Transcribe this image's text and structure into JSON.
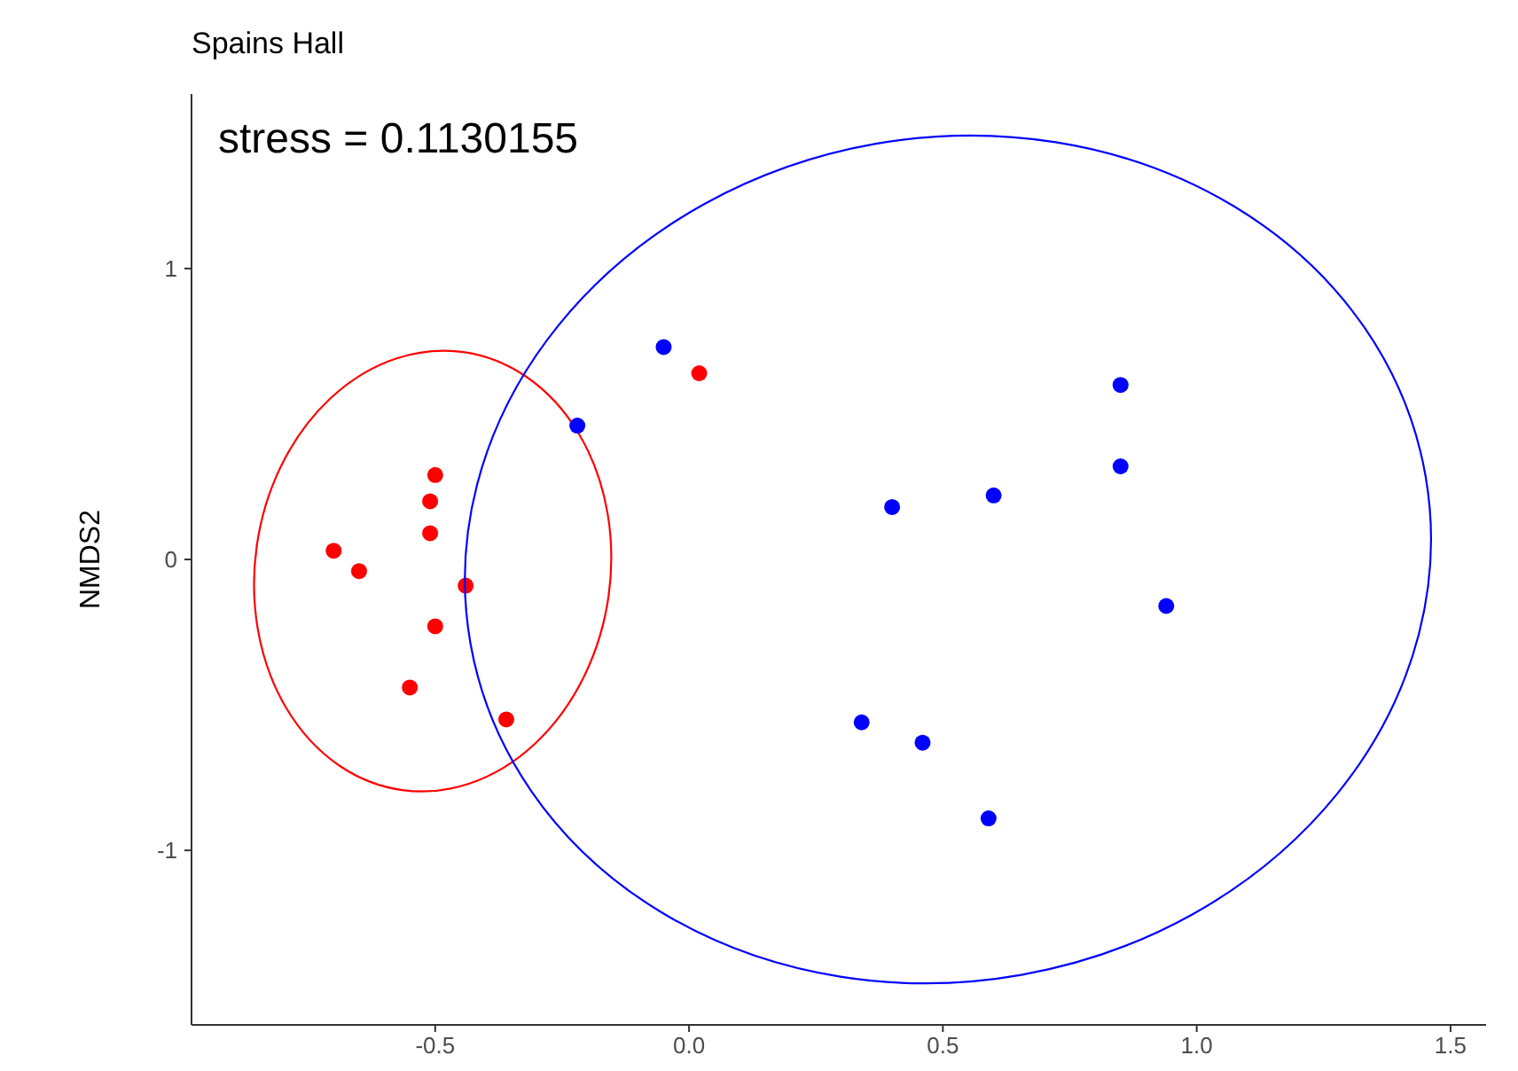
{
  "chart_data": {
    "type": "scatter",
    "title": "Spains Hall",
    "ylabel": "NMDS2",
    "annotations": [
      "stress = 0.1130155"
    ],
    "xlim": [
      -0.98,
      1.57
    ],
    "ylim": [
      -1.6,
      1.6
    ],
    "xticks": [
      {
        "value": -0.5,
        "label": "-0.5"
      },
      {
        "value": 0,
        "label": "0.0"
      },
      {
        "value": 0.5,
        "label": "0.5"
      },
      {
        "value": 1,
        "label": "1.0"
      },
      {
        "value": 1.5,
        "label": "1.5"
      }
    ],
    "yticks": [
      -1,
      0,
      1
    ],
    "grid": false,
    "marker": "circle",
    "series": [
      {
        "color": "#ff0000",
        "x": [
          -0.7,
          -0.65,
          -0.5,
          -0.51,
          -0.51,
          -0.44,
          -0.5,
          -0.55,
          -0.36,
          0.02
        ],
        "values": [
          0.03,
          -0.04,
          0.29,
          0.2,
          0.09,
          -0.09,
          -0.23,
          -0.44,
          -0.55,
          0.64
        ]
      },
      {
        "color": "#0000ff",
        "x": [
          -0.05,
          -0.22,
          0.4,
          0.6,
          0.85,
          0.85,
          0.94,
          0.34,
          0.46,
          0.59
        ],
        "values": [
          0.73,
          0.46,
          0.18,
          0.22,
          0.6,
          0.32,
          -0.16,
          -0.56,
          -0.63,
          -0.89
        ]
      }
    ]
  }
}
